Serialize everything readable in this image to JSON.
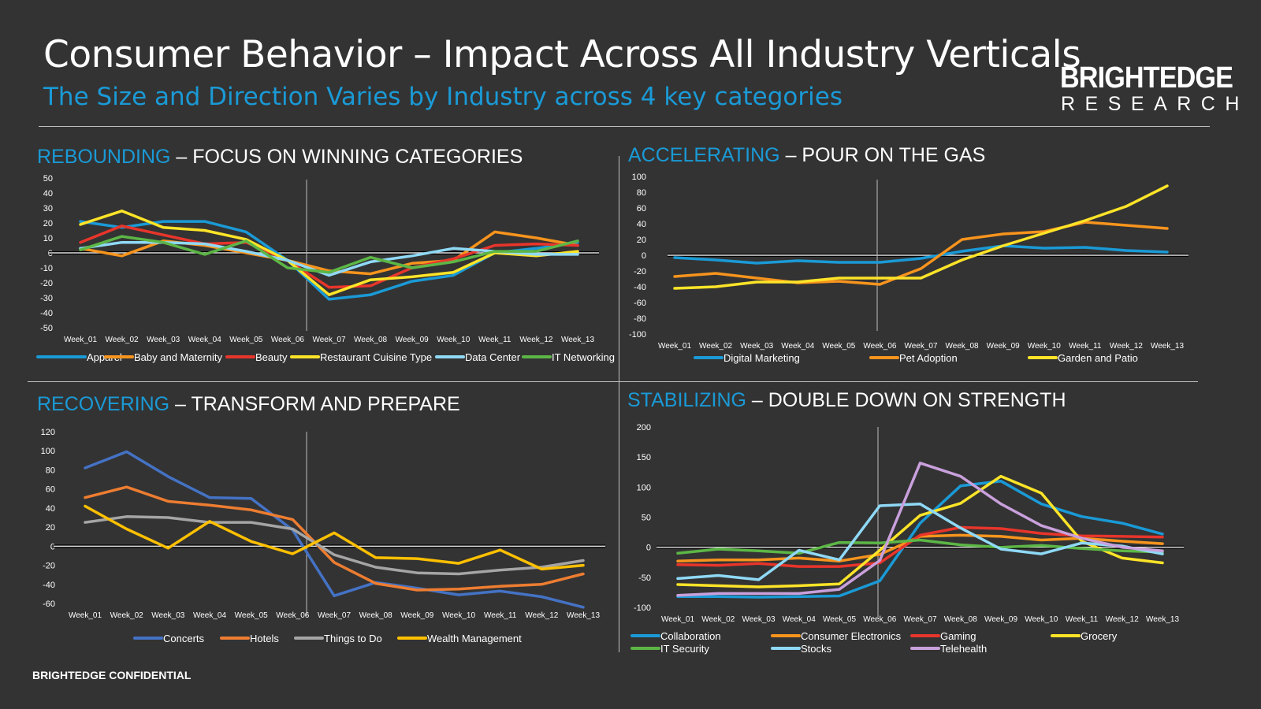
{
  "header": {
    "title": "Consumer Behavior – Impact Across All Industry Verticals",
    "subtitle": "The Size and Direction Varies by Industry across 4 key categories",
    "logo_line1": "BRIGHTEDGE",
    "logo_line2": "RESEARCH"
  },
  "footer": {
    "confidential": "BRIGHTEDGE CONFIDENTIAL"
  },
  "sections": [
    {
      "accent": "REBOUNDING",
      "rest": " – FOCUS ON WINNING CATEGORIES"
    },
    {
      "accent": "ACCELERATING",
      "rest": " – POUR ON THE GAS"
    },
    {
      "accent": "RECOVERING",
      "rest": " – TRANSFORM AND PREPARE"
    },
    {
      "accent": "STABILIZING",
      "rest": " – DOUBLE DOWN ON STRENGTH"
    }
  ],
  "chart_data": [
    {
      "type": "line",
      "categories": [
        "Week_01",
        "Week_02",
        "Week_03",
        "Week_04",
        "Week_05",
        "Week_06",
        "Week_07",
        "Week_08",
        "Week_09",
        "Week_10",
        "Week_11",
        "Week_12",
        "Week_13"
      ],
      "ylim": [
        -50,
        50
      ],
      "yticks": [
        50,
        40,
        30,
        20,
        10,
        0,
        -10,
        -20,
        -30,
        -40,
        -50
      ],
      "legend": "bottom",
      "series": [
        {
          "name": "Apparel",
          "color": "#1a9ad6",
          "values": [
            21,
            17,
            21,
            21,
            14,
            -5,
            -31,
            -28,
            -19,
            -15,
            0,
            3,
            7
          ]
        },
        {
          "name": "Baby and Maternity",
          "color": "#f7941d",
          "values": [
            3,
            -2,
            8,
            5,
            0,
            -5,
            -12,
            -14,
            -7,
            -5,
            14,
            10,
            5
          ]
        },
        {
          "name": "Beauty",
          "color": "#e8352b",
          "values": [
            7,
            18,
            12,
            6,
            7,
            -5,
            -23,
            -22,
            -10,
            -4,
            5,
            6,
            5
          ]
        },
        {
          "name": "Restaurant Cuisine Type",
          "color": "#fde428",
          "values": [
            19,
            28,
            17,
            15,
            9,
            -5,
            -28,
            -18,
            -16,
            -13,
            0,
            -2,
            1
          ]
        },
        {
          "name": "Data Center",
          "color": "#8fd9f6",
          "values": [
            3,
            7,
            7,
            6,
            1,
            -5,
            -15,
            -6,
            -2,
            3,
            1,
            -1,
            -1
          ]
        },
        {
          "name": "IT Networking",
          "color": "#5cb646",
          "values": [
            2,
            11,
            7,
            -1,
            8,
            -10,
            -13,
            -3,
            -10,
            -6,
            1,
            1,
            8
          ]
        }
      ]
    },
    {
      "type": "line",
      "categories": [
        "Week_01",
        "Week_02",
        "Week_03",
        "Week_04",
        "Week_05",
        "Week_06",
        "Week_07",
        "Week_08",
        "Week_09",
        "Week_10",
        "Week_11",
        "Week_12",
        "Week_13"
      ],
      "ylim": [
        -100,
        100
      ],
      "yticks": [
        100,
        80,
        60,
        40,
        20,
        0,
        -20,
        -40,
        -60,
        -80,
        -100
      ],
      "legend": "bottom",
      "series": [
        {
          "name": "Digital Marketing",
          "color": "#1a9ad6",
          "values": [
            -3,
            -6,
            -10,
            -7,
            -9,
            -9,
            -4,
            5,
            12,
            9,
            10,
            6,
            4
          ]
        },
        {
          "name": "Pet Adoption",
          "color": "#f7941d",
          "values": [
            -27,
            -23,
            -29,
            -35,
            -33,
            -37,
            -17,
            20,
            27,
            30,
            42,
            38,
            34
          ]
        },
        {
          "name": "Garden and Patio",
          "color": "#fde428",
          "values": [
            -42,
            -40,
            -34,
            -34,
            -29,
            -29,
            -29,
            -6,
            12,
            28,
            44,
            62,
            88
          ]
        }
      ]
    },
    {
      "type": "line",
      "categories": [
        "Week_01",
        "Week_02",
        "Week_03",
        "Week_04",
        "Week_05",
        "Week_06",
        "Week_07",
        "Week_08",
        "Week_09",
        "Week_10",
        "Week_11",
        "Week_12",
        "Week_13"
      ],
      "ylim": [
        -60,
        120
      ],
      "yticks": [
        120,
        100,
        80,
        60,
        40,
        20,
        0,
        -20,
        -40,
        -60
      ],
      "legend": "bottom",
      "series": [
        {
          "name": "Concerts",
          "color": "#4472c4",
          "values": [
            82,
            99,
            73,
            51,
            50,
            17,
            -52,
            -38,
            -44,
            -51,
            -47,
            -53,
            -64
          ]
        },
        {
          "name": "Hotels",
          "color": "#ed7d31",
          "values": [
            51,
            62,
            47,
            43,
            38,
            28,
            -17,
            -39,
            -46,
            -45,
            -42,
            -40,
            -29
          ]
        },
        {
          "name": "Things to Do",
          "color": "#a5a5a5",
          "values": [
            25,
            31,
            30,
            25,
            25,
            18,
            -9,
            -22,
            -28,
            -29,
            -25,
            -22,
            -15
          ]
        },
        {
          "name": "Wealth Management",
          "color": "#ffc000",
          "values": [
            42,
            18,
            -2,
            26,
            5,
            -8,
            14,
            -12,
            -13,
            -18,
            -4,
            -24,
            -20
          ]
        }
      ]
    },
    {
      "type": "line",
      "categories": [
        "Week_01",
        "Week_02",
        "Week_03",
        "Week_04",
        "Week_05",
        "Week_06",
        "Week_07",
        "Week_08",
        "Week_09",
        "Week_10",
        "Week_11",
        "Week_12",
        "Week_13"
      ],
      "ylim": [
        -100,
        200
      ],
      "yticks": [
        200,
        150,
        100,
        50,
        0,
        -50,
        -100
      ],
      "legend": "bottom",
      "series": [
        {
          "name": "Collaboration",
          "color": "#1a9ad6",
          "values": [
            -82,
            -82,
            -83,
            -82,
            -81,
            -56,
            40,
            102,
            110,
            72,
            51,
            40,
            22
          ]
        },
        {
          "name": "Consumer Electronics",
          "color": "#f7941d",
          "values": [
            -23,
            -21,
            -21,
            -18,
            -23,
            -12,
            18,
            20,
            18,
            12,
            15,
            10,
            6
          ]
        },
        {
          "name": "Gaming",
          "color": "#e8352b",
          "values": [
            -29,
            -30,
            -27,
            -32,
            -32,
            -26,
            20,
            33,
            31,
            23,
            19,
            18,
            17
          ]
        },
        {
          "name": "Grocery",
          "color": "#fde428",
          "values": [
            -62,
            -64,
            -66,
            -64,
            -61,
            -5,
            53,
            73,
            118,
            90,
            10,
            -18,
            -26
          ]
        },
        {
          "name": "IT Security",
          "color": "#5cb646",
          "values": [
            -10,
            -3,
            -6,
            -10,
            8,
            7,
            12,
            4,
            0,
            3,
            -2,
            -6,
            -8
          ]
        },
        {
          "name": "Stocks",
          "color": "#8fd9f6",
          "values": [
            -52,
            -47,
            -54,
            -5,
            -21,
            69,
            72,
            32,
            -3,
            -11,
            7,
            2,
            -11
          ]
        },
        {
          "name": "Telehealth",
          "color": "#c9a0dc",
          "values": [
            -80,
            -77,
            -77,
            -77,
            -70,
            -22,
            140,
            118,
            72,
            36,
            15,
            0,
            -6
          ]
        }
      ]
    }
  ]
}
